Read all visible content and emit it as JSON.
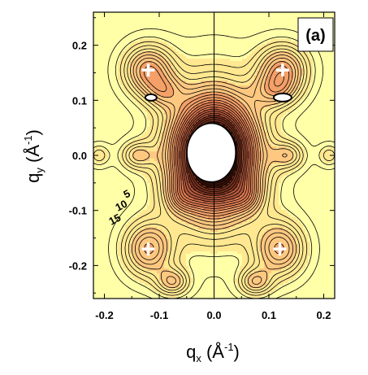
{
  "chart_data": {
    "type": "heatmap",
    "subtype": "contour",
    "panel_label": "(a)",
    "xlabel": {
      "symbol": "q",
      "sub": "x",
      "unit_open": " (Å",
      "unit_sup": "-1",
      "unit_close": ")"
    },
    "ylabel": {
      "symbol": "q",
      "sub": "y",
      "unit_open": " (Å",
      "unit_sup": "-1",
      "unit_close": ")"
    },
    "xlim": [
      -0.22,
      0.22
    ],
    "ylim": [
      -0.26,
      0.26
    ],
    "x_ticks": [
      -0.2,
      -0.1,
      0.0,
      0.1,
      0.2
    ],
    "x_tick_labels": [
      "-0.2",
      "-0.1",
      "0.0",
      "0.1",
      "0.2"
    ],
    "y_ticks": [
      0.2,
      0.1,
      0.0,
      -0.1,
      -0.2
    ],
    "y_tick_labels": [
      "0.2",
      "0.1",
      "0.0",
      "-0.1",
      "-0.2"
    ],
    "contour_level_labels": [
      "5",
      "10",
      "15"
    ],
    "colormap": [
      "#ffffa8",
      "#ffe890",
      "#ffc880",
      "#f4a068",
      "#e07c52",
      "#b4583c",
      "#7a3220",
      "#3a1208"
    ],
    "peaks": [
      {
        "qx": -0.12,
        "qy": 0.155,
        "marker": "plus"
      },
      {
        "qx": 0.125,
        "qy": 0.155,
        "marker": "plus"
      },
      {
        "qx": -0.12,
        "qy": -0.17,
        "marker": "plus"
      },
      {
        "qx": 0.12,
        "qy": -0.17,
        "marker": "plus"
      }
    ],
    "beamstop": {
      "qx": 0.0,
      "qy": 0.0,
      "color": "#ffffff"
    },
    "grid": false
  }
}
